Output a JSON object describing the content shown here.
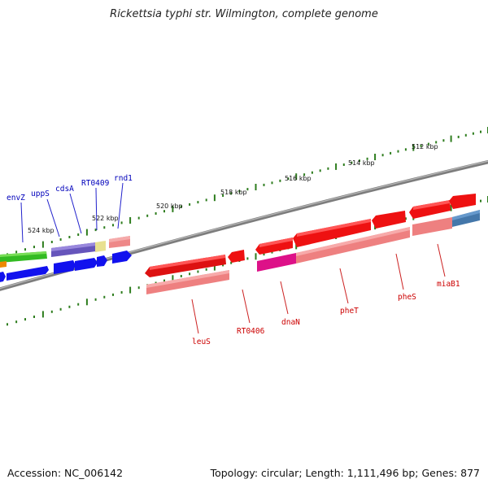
{
  "title": "Rickettsia typhi str. Wilmington, complete genome",
  "footer": {
    "accession": "Accession: NC_006142",
    "topology": "Topology: circular; Length: 1,111,496 bp; Genes: 877"
  },
  "colors": {
    "tick": "#2e7d1e",
    "backbone": "#808080",
    "forward_label": "#0000bb",
    "reverse_label": "#cc0000"
  },
  "scale_labels": [
    "524 kbp",
    "522 kbp",
    "520 kbp",
    "518 kbp",
    "516 kbp",
    "514 kbp",
    "512 kbp"
  ],
  "genes_forward_labels": [
    "envZ",
    "uppS",
    "cdsA",
    "RT0409",
    "rnd1"
  ],
  "genes_reverse_labels": [
    "leuS",
    "RT0406",
    "dnaN",
    "pheT",
    "pheS",
    "miaB1"
  ]
}
